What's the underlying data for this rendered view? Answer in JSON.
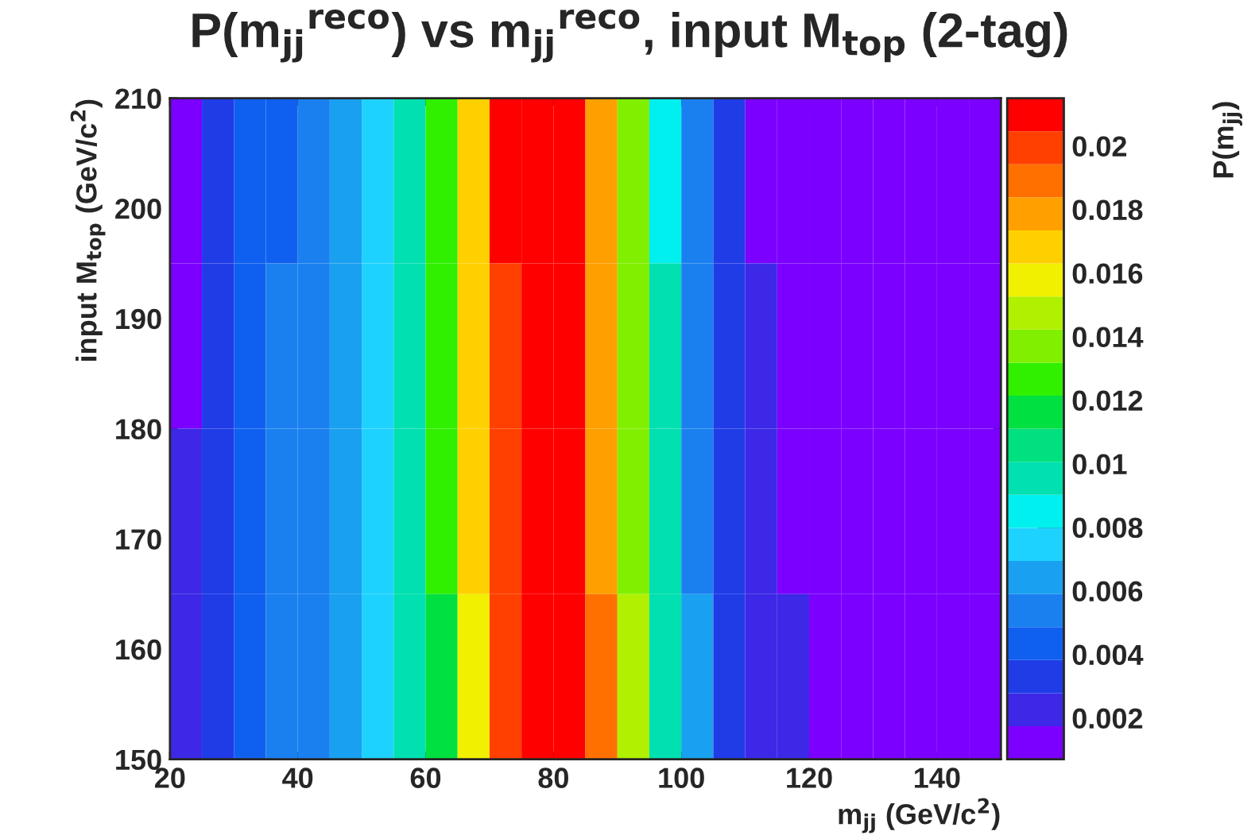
{
  "chart_data": {
    "type": "heatmap",
    "title": "P(m$_{jj}$$^{reco}$) vs m$_{jj}$$^{reco}$, input M$_{top}$ (2-tag)",
    "xlabel": "m$_{jj}$ (GeV/c$^{2}$)",
    "ylabel": "input M$_{top}$ (GeV/c$^{2}$)",
    "clabel": "P(m$_{jj}$)",
    "x": [
      22.5,
      27.5,
      32.5,
      37.5,
      42.5,
      47.5,
      52.5,
      57.5,
      62.5,
      67.5,
      72.5,
      77.5,
      82.5,
      87.5,
      92.5,
      97.5,
      102.5,
      107.5,
      112.5,
      117.5,
      122.5,
      127.5,
      132.5,
      137.5,
      142.5,
      147.5
    ],
    "y": [
      202.5,
      187.5,
      172.5,
      157.5
    ],
    "cells": [
      [
        0.0016,
        0.0028,
        0.004,
        0.0048,
        0.0055,
        0.0061,
        0.0072,
        0.0092,
        0.0124,
        0.0165,
        0.0205,
        0.0215,
        0.021,
        0.0178,
        0.0136,
        0.0088,
        0.005,
        0.0028,
        0.0016,
        0.0012,
        0.001,
        0.0009,
        0.0008,
        0.0008,
        0.0007,
        0.0007
      ],
      [
        0.0017,
        0.0029,
        0.0041,
        0.0049,
        0.0055,
        0.0061,
        0.0072,
        0.0092,
        0.0123,
        0.0164,
        0.0204,
        0.0215,
        0.0211,
        0.018,
        0.0139,
        0.0091,
        0.0053,
        0.0031,
        0.0019,
        0.0014,
        0.0011,
        0.001,
        0.0009,
        0.0008,
        0.0008,
        0.0007
      ],
      [
        0.0018,
        0.003,
        0.0042,
        0.005,
        0.0056,
        0.0062,
        0.0072,
        0.0092,
        0.0122,
        0.0163,
        0.0203,
        0.0215,
        0.0212,
        0.0182,
        0.0142,
        0.0094,
        0.0056,
        0.0034,
        0.0021,
        0.0016,
        0.0012,
        0.001,
        0.0009,
        0.0009,
        0.0008,
        0.0008
      ],
      [
        0.0019,
        0.0031,
        0.0043,
        0.0051,
        0.0057,
        0.0062,
        0.0072,
        0.0091,
        0.0121,
        0.0162,
        0.0202,
        0.0214,
        0.0213,
        0.0184,
        0.0145,
        0.0097,
        0.0059,
        0.0037,
        0.0024,
        0.0018,
        0.0013,
        0.0011,
        0.001,
        0.0009,
        0.0009,
        0.0008
      ]
    ],
    "colors": [
      "#7b00ff",
      "#3c28e6",
      "#1f3ce6",
      "#1060f0",
      "#1a80f0",
      "#1aa0f0",
      "#1ed2ff",
      "#00f0f0",
      "#00e0b0",
      "#00e080",
      "#00e040",
      "#30f000",
      "#80f000",
      "#b0f000",
      "#f0f000",
      "#ffd000",
      "#ffa000",
      "#ff7000",
      "#ff4000",
      "#ff0000"
    ],
    "xlim": [
      20,
      150
    ],
    "xticks": [
      20,
      40,
      60,
      80,
      100,
      120,
      140
    ],
    "ylim": [
      150,
      210
    ],
    "yticks": [
      150,
      160,
      170,
      180,
      190,
      200,
      210
    ],
    "clim": [
      0.0007,
      0.0215
    ],
    "cticks": [
      0.002,
      0.004,
      0.006,
      0.008,
      0.01,
      0.012,
      0.014,
      0.016,
      0.018,
      0.02
    ]
  }
}
